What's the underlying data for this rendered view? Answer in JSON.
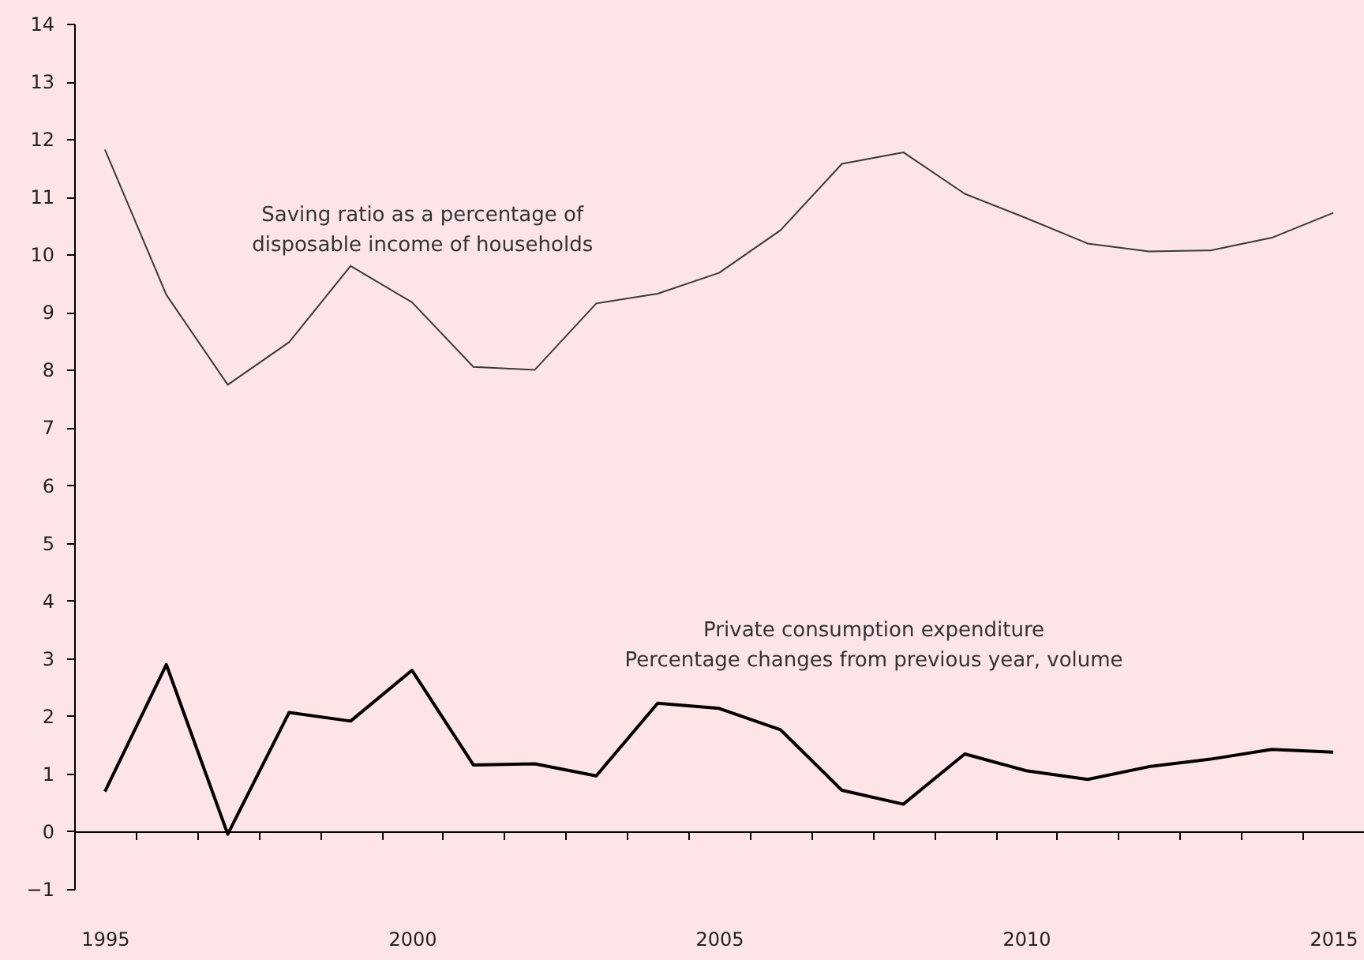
{
  "chart_data": {
    "type": "line",
    "categories": [
      "1995",
      null,
      null,
      null,
      null,
      "2000",
      null,
      null,
      null,
      null,
      "2005",
      null,
      null,
      null,
      null,
      "2010",
      null,
      null,
      null,
      null,
      "2015"
    ],
    "series": [
      {
        "name": "Saving ratio as a percentage of\ndisposable income of households",
        "color": "#3a3a3a",
        "values": [
          11.82,
          9.3,
          7.74,
          8.48,
          9.8,
          9.17,
          8.05,
          8.0,
          9.15,
          9.32,
          9.68,
          10.42,
          11.57,
          11.77,
          11.05,
          10.63,
          10.19,
          10.05,
          10.07,
          10.29,
          10.72
        ]
      },
      {
        "name": "Private consumption expenditure\nPercentage changes from previous year, volume",
        "color": "#000000",
        "values": [
          0.69,
          2.89,
          -0.05,
          2.06,
          1.91,
          2.79,
          1.15,
          1.17,
          0.96,
          2.22,
          2.13,
          1.76,
          0.71,
          0.47,
          1.34,
          1.05,
          0.9,
          1.12,
          1.25,
          1.42,
          1.37
        ]
      }
    ],
    "ylim": [
      -1,
      14
    ],
    "yticks": [
      -1,
      0,
      1,
      2,
      3,
      4,
      5,
      6,
      7,
      8,
      9,
      10,
      11,
      12,
      13,
      14
    ],
    "marker": "none",
    "line_style": "solid"
  }
}
